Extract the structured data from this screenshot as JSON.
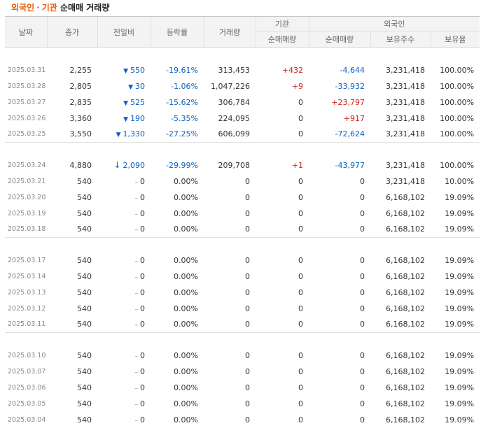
{
  "title": {
    "accent": "외국인",
    "dot": "·",
    "accent2": "기관",
    "rest": "순매매 거래량"
  },
  "columns": {
    "date": "날짜",
    "close": "종가",
    "change": "전일비",
    "rate": "등락률",
    "volume": "거래량",
    "inst_group": "기관",
    "inst_net": "순매매량",
    "foreign_group": "외국인",
    "foreign_net": "순매매량",
    "foreign_hold": "보유주수",
    "foreign_ratio": "보유율"
  },
  "colors": {
    "accent": "#e85d04",
    "down": "#0b5fc4",
    "up": "#d21f1f"
  },
  "groups": [
    [
      {
        "date": "2025.03.31",
        "close": "2,255",
        "change_dir": "down",
        "change": "550",
        "rate": "-19.61%",
        "volume": "313,453",
        "inst": "+432",
        "inst_dir": "up",
        "foreign": "-4,644",
        "foreign_dir": "down",
        "hold": "3,231,418",
        "ratio": "100.00%"
      },
      {
        "date": "2025.03.28",
        "close": "2,805",
        "change_dir": "down",
        "change": "30",
        "rate": "-1.06%",
        "volume": "1,047,226",
        "inst": "+9",
        "inst_dir": "up",
        "foreign": "-33,932",
        "foreign_dir": "down",
        "hold": "3,231,418",
        "ratio": "100.00%"
      },
      {
        "date": "2025.03.27",
        "close": "2,835",
        "change_dir": "down",
        "change": "525",
        "rate": "-15.62%",
        "volume": "306,784",
        "inst": "0",
        "inst_dir": "neutral",
        "foreign": "+23,797",
        "foreign_dir": "up",
        "hold": "3,231,418",
        "ratio": "100.00%"
      },
      {
        "date": "2025.03.26",
        "close": "3,360",
        "change_dir": "down",
        "change": "190",
        "rate": "-5.35%",
        "volume": "224,095",
        "inst": "0",
        "inst_dir": "neutral",
        "foreign": "+917",
        "foreign_dir": "up",
        "hold": "3,231,418",
        "ratio": "100.00%"
      },
      {
        "date": "2025.03.25",
        "close": "3,550",
        "change_dir": "down",
        "change": "1,330",
        "rate": "-27.25%",
        "volume": "606,099",
        "inst": "0",
        "inst_dir": "neutral",
        "foreign": "-72,624",
        "foreign_dir": "down",
        "hold": "3,231,418",
        "ratio": "100.00%"
      }
    ],
    [
      {
        "date": "2025.03.24",
        "close": "4,880",
        "change_dir": "limit-down",
        "change": "2,090",
        "rate": "-29.99%",
        "volume": "209,708",
        "inst": "+1",
        "inst_dir": "up",
        "foreign": "-43,977",
        "foreign_dir": "down",
        "hold": "3,231,418",
        "ratio": "100.00%"
      },
      {
        "date": "2025.03.21",
        "close": "540",
        "change_dir": "flat",
        "change": "0",
        "rate": "0.00%",
        "volume": "0",
        "inst": "0",
        "inst_dir": "neutral",
        "foreign": "0",
        "foreign_dir": "neutral",
        "hold": "3,231,418",
        "ratio": "10.00%"
      },
      {
        "date": "2025.03.20",
        "close": "540",
        "change_dir": "flat",
        "change": "0",
        "rate": "0.00%",
        "volume": "0",
        "inst": "0",
        "inst_dir": "neutral",
        "foreign": "0",
        "foreign_dir": "neutral",
        "hold": "6,168,102",
        "ratio": "19.09%"
      },
      {
        "date": "2025.03.19",
        "close": "540",
        "change_dir": "flat",
        "change": "0",
        "rate": "0.00%",
        "volume": "0",
        "inst": "0",
        "inst_dir": "neutral",
        "foreign": "0",
        "foreign_dir": "neutral",
        "hold": "6,168,102",
        "ratio": "19.09%"
      },
      {
        "date": "2025.03.18",
        "close": "540",
        "change_dir": "flat",
        "change": "0",
        "rate": "0.00%",
        "volume": "0",
        "inst": "0",
        "inst_dir": "neutral",
        "foreign": "0",
        "foreign_dir": "neutral",
        "hold": "6,168,102",
        "ratio": "19.09%"
      }
    ],
    [
      {
        "date": "2025.03.17",
        "close": "540",
        "change_dir": "flat",
        "change": "0",
        "rate": "0.00%",
        "volume": "0",
        "inst": "0",
        "inst_dir": "neutral",
        "foreign": "0",
        "foreign_dir": "neutral",
        "hold": "6,168,102",
        "ratio": "19.09%"
      },
      {
        "date": "2025.03.14",
        "close": "540",
        "change_dir": "flat",
        "change": "0",
        "rate": "0.00%",
        "volume": "0",
        "inst": "0",
        "inst_dir": "neutral",
        "foreign": "0",
        "foreign_dir": "neutral",
        "hold": "6,168,102",
        "ratio": "19.09%"
      },
      {
        "date": "2025.03.13",
        "close": "540",
        "change_dir": "flat",
        "change": "0",
        "rate": "0.00%",
        "volume": "0",
        "inst": "0",
        "inst_dir": "neutral",
        "foreign": "0",
        "foreign_dir": "neutral",
        "hold": "6,168,102",
        "ratio": "19.09%"
      },
      {
        "date": "2025.03.12",
        "close": "540",
        "change_dir": "flat",
        "change": "0",
        "rate": "0.00%",
        "volume": "0",
        "inst": "0",
        "inst_dir": "neutral",
        "foreign": "0",
        "foreign_dir": "neutral",
        "hold": "6,168,102",
        "ratio": "19.09%"
      },
      {
        "date": "2025.03.11",
        "close": "540",
        "change_dir": "flat",
        "change": "0",
        "rate": "0.00%",
        "volume": "0",
        "inst": "0",
        "inst_dir": "neutral",
        "foreign": "0",
        "foreign_dir": "neutral",
        "hold": "6,168,102",
        "ratio": "19.09%"
      }
    ],
    [
      {
        "date": "2025.03.10",
        "close": "540",
        "change_dir": "flat",
        "change": "0",
        "rate": "0.00%",
        "volume": "0",
        "inst": "0",
        "inst_dir": "neutral",
        "foreign": "0",
        "foreign_dir": "neutral",
        "hold": "6,168,102",
        "ratio": "19.09%"
      },
      {
        "date": "2025.03.07",
        "close": "540",
        "change_dir": "flat",
        "change": "0",
        "rate": "0.00%",
        "volume": "0",
        "inst": "0",
        "inst_dir": "neutral",
        "foreign": "0",
        "foreign_dir": "neutral",
        "hold": "6,168,102",
        "ratio": "19.09%"
      },
      {
        "date": "2025.03.06",
        "close": "540",
        "change_dir": "flat",
        "change": "0",
        "rate": "0.00%",
        "volume": "0",
        "inst": "0",
        "inst_dir": "neutral",
        "foreign": "0",
        "foreign_dir": "neutral",
        "hold": "6,168,102",
        "ratio": "19.09%"
      },
      {
        "date": "2025.03.05",
        "close": "540",
        "change_dir": "flat",
        "change": "0",
        "rate": "0.00%",
        "volume": "0",
        "inst": "0",
        "inst_dir": "neutral",
        "foreign": "0",
        "foreign_dir": "neutral",
        "hold": "6,168,102",
        "ratio": "19.09%"
      },
      {
        "date": "2025.03.04",
        "close": "540",
        "change_dir": "flat",
        "change": "0",
        "rate": "0.00%",
        "volume": "0",
        "inst": "0",
        "inst_dir": "neutral",
        "foreign": "0",
        "foreign_dir": "neutral",
        "hold": "6,168,102",
        "ratio": "19.09%"
      }
    ]
  ]
}
